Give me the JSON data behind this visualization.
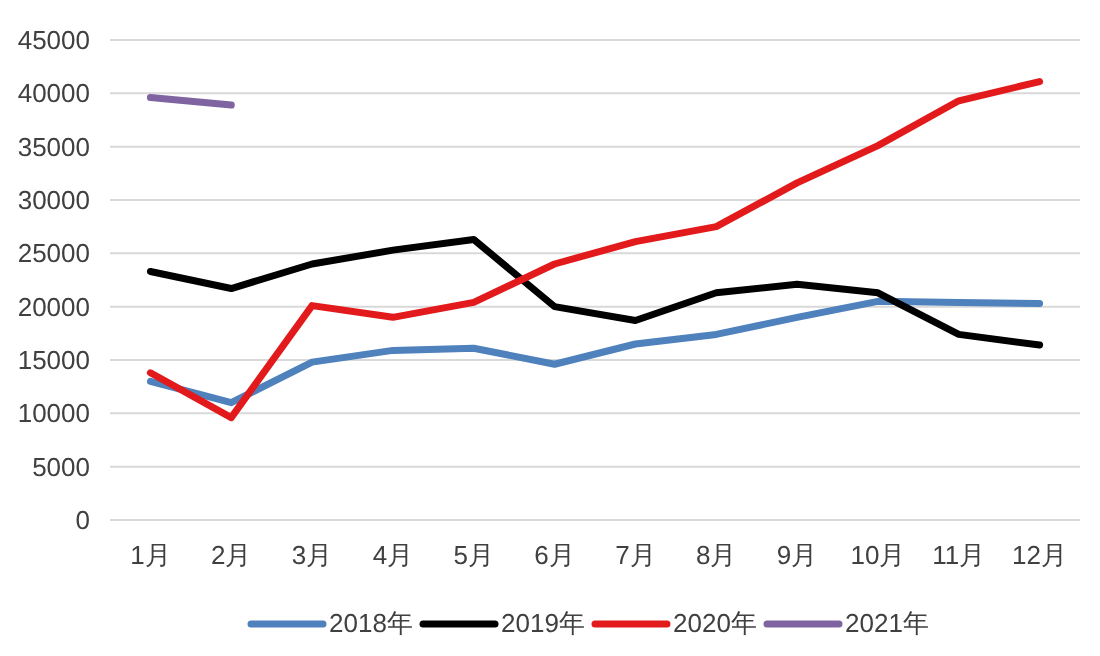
{
  "chart_data": {
    "type": "line",
    "categories": [
      "1月",
      "2月",
      "3月",
      "4月",
      "5月",
      "6月",
      "7月",
      "8月",
      "9月",
      "10月",
      "11月",
      "12月"
    ],
    "series": [
      {
        "name": "2018年",
        "color": "#4f81bd",
        "values": [
          13000,
          11000,
          14800,
          15900,
          16100,
          14600,
          16500,
          17400,
          19000,
          20500,
          20400,
          20300
        ]
      },
      {
        "name": "2019年",
        "color": "#000000",
        "values": [
          23300,
          21700,
          24000,
          25300,
          26300,
          20000,
          18700,
          21300,
          22100,
          21300,
          17400,
          16400
        ]
      },
      {
        "name": "2020年",
        "color": "#e31a1c",
        "values": [
          13800,
          9600,
          20100,
          19000,
          20400,
          24000,
          26100,
          27500,
          31600,
          35100,
          39300,
          41100
        ]
      },
      {
        "name": "2021年",
        "color": "#8064a2",
        "values": [
          39600,
          38900,
          null,
          null,
          null,
          null,
          null,
          null,
          null,
          null,
          null,
          null
        ]
      }
    ],
    "ylim": [
      0,
      45000
    ],
    "yticks": [
      0,
      5000,
      10000,
      15000,
      20000,
      25000,
      30000,
      35000,
      40000,
      45000
    ],
    "grid": "y",
    "legend": "bottom",
    "marker": "none",
    "line_style": "solid"
  }
}
